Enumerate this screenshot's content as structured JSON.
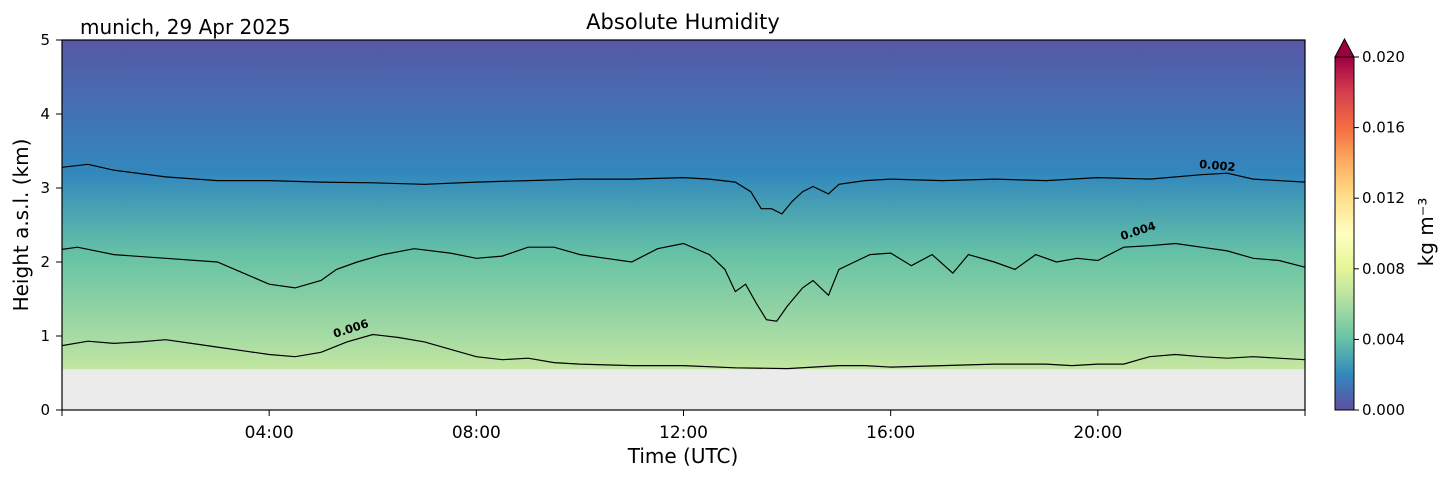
{
  "location_label": "munich, 29 Apr 2025",
  "chart_data": {
    "type": "heatmap",
    "title": "Absolute Humidity",
    "xlabel": "Time (UTC)",
    "ylabel": "Height a.s.l. (km)",
    "xlim_hours": [
      0,
      24
    ],
    "ylim_km": [
      0,
      5
    ],
    "x_ticks": [
      "04:00",
      "08:00",
      "12:00",
      "16:00",
      "20:00"
    ],
    "x_tick_hours": [
      4,
      8,
      12,
      16,
      20
    ],
    "y_ticks": [
      "0",
      "1",
      "2",
      "3",
      "4",
      "5"
    ],
    "data_bottom_km": 0.55,
    "no_data_color": "#ebebeb",
    "colorbar": {
      "label": "kg m⁻³",
      "min": 0.0,
      "max": 0.02,
      "extend": "max",
      "colormap": "Spectral_r",
      "ticks": [
        "0.000",
        "0.004",
        "0.008",
        "0.012",
        "0.016",
        "0.020"
      ],
      "tick_values": [
        0.0,
        0.004,
        0.008,
        0.012,
        0.016,
        0.02
      ],
      "stops": [
        {
          "v": 0.0,
          "color": "#5e4fa2"
        },
        {
          "v": 0.002,
          "color": "#3288bd"
        },
        {
          "v": 0.004,
          "color": "#66c2a5"
        },
        {
          "v": 0.006,
          "color": "#abdda4"
        },
        {
          "v": 0.008,
          "color": "#e6f598"
        },
        {
          "v": 0.01,
          "color": "#ffffbf"
        },
        {
          "v": 0.012,
          "color": "#fee08b"
        },
        {
          "v": 0.014,
          "color": "#fdae61"
        },
        {
          "v": 0.016,
          "color": "#f46d43"
        },
        {
          "v": 0.018,
          "color": "#d53e4f"
        },
        {
          "v": 0.02,
          "color": "#9e0142"
        }
      ]
    },
    "contours": [
      {
        "label": "0.002",
        "level": 0.002,
        "label_hour": 22.3,
        "label_km": 3.25,
        "points": [
          [
            0.0,
            3.28
          ],
          [
            0.5,
            3.32
          ],
          [
            1,
            3.24
          ],
          [
            2,
            3.15
          ],
          [
            3,
            3.1
          ],
          [
            4,
            3.1
          ],
          [
            5,
            3.08
          ],
          [
            6,
            3.07
          ],
          [
            7,
            3.05
          ],
          [
            8,
            3.08
          ],
          [
            9,
            3.1
          ],
          [
            10,
            3.12
          ],
          [
            11,
            3.12
          ],
          [
            12,
            3.14
          ],
          [
            12.5,
            3.12
          ],
          [
            13,
            3.08
          ],
          [
            13.3,
            2.95
          ],
          [
            13.5,
            2.72
          ],
          [
            13.7,
            2.72
          ],
          [
            13.9,
            2.65
          ],
          [
            14.1,
            2.82
          ],
          [
            14.3,
            2.95
          ],
          [
            14.5,
            3.02
          ],
          [
            14.8,
            2.92
          ],
          [
            15,
            3.05
          ],
          [
            15.5,
            3.1
          ],
          [
            16,
            3.12
          ],
          [
            17,
            3.1
          ],
          [
            18,
            3.12
          ],
          [
            19,
            3.1
          ],
          [
            20,
            3.14
          ],
          [
            21,
            3.12
          ],
          [
            22,
            3.18
          ],
          [
            22.5,
            3.2
          ],
          [
            23,
            3.12
          ],
          [
            24,
            3.08
          ]
        ]
      },
      {
        "label": "0.004",
        "level": 0.004,
        "label_hour": 20.8,
        "label_km": 2.37,
        "points": [
          [
            0.0,
            2.17
          ],
          [
            0.3,
            2.2
          ],
          [
            1,
            2.1
          ],
          [
            2,
            2.05
          ],
          [
            3,
            2.0
          ],
          [
            3.5,
            1.85
          ],
          [
            4,
            1.7
          ],
          [
            4.5,
            1.65
          ],
          [
            5,
            1.75
          ],
          [
            5.3,
            1.9
          ],
          [
            5.7,
            2.0
          ],
          [
            6.2,
            2.1
          ],
          [
            6.8,
            2.18
          ],
          [
            7.5,
            2.12
          ],
          [
            8,
            2.05
          ],
          [
            8.5,
            2.08
          ],
          [
            9,
            2.2
          ],
          [
            9.5,
            2.2
          ],
          [
            10,
            2.1
          ],
          [
            10.5,
            2.05
          ],
          [
            11,
            2.0
          ],
          [
            11.5,
            2.18
          ],
          [
            12,
            2.25
          ],
          [
            12.5,
            2.1
          ],
          [
            12.8,
            1.9
          ],
          [
            13,
            1.6
          ],
          [
            13.2,
            1.7
          ],
          [
            13.4,
            1.45
          ],
          [
            13.6,
            1.22
          ],
          [
            13.8,
            1.2
          ],
          [
            14,
            1.4
          ],
          [
            14.3,
            1.65
          ],
          [
            14.5,
            1.75
          ],
          [
            14.8,
            1.55
          ],
          [
            15,
            1.9
          ],
          [
            15.3,
            2.0
          ],
          [
            15.6,
            2.1
          ],
          [
            16,
            2.12
          ],
          [
            16.4,
            1.95
          ],
          [
            16.8,
            2.1
          ],
          [
            17.2,
            1.85
          ],
          [
            17.5,
            2.1
          ],
          [
            18,
            2.0
          ],
          [
            18.4,
            1.9
          ],
          [
            18.8,
            2.1
          ],
          [
            19.2,
            2.0
          ],
          [
            19.6,
            2.05
          ],
          [
            20,
            2.02
          ],
          [
            20.5,
            2.2
          ],
          [
            21,
            2.22
          ],
          [
            21.5,
            2.25
          ],
          [
            22,
            2.2
          ],
          [
            22.5,
            2.15
          ],
          [
            23,
            2.05
          ],
          [
            23.5,
            2.02
          ],
          [
            24,
            1.93
          ]
        ]
      },
      {
        "label": "0.006",
        "level": 0.006,
        "label_hour": 5.6,
        "label_km": 1.05,
        "points": [
          [
            0.0,
            0.87
          ],
          [
            0.5,
            0.93
          ],
          [
            1,
            0.9
          ],
          [
            1.5,
            0.92
          ],
          [
            2,
            0.95
          ],
          [
            2.5,
            0.9
          ],
          [
            3,
            0.85
          ],
          [
            3.5,
            0.8
          ],
          [
            4,
            0.75
          ],
          [
            4.5,
            0.72
          ],
          [
            5,
            0.78
          ],
          [
            5.5,
            0.92
          ],
          [
            6,
            1.02
          ],
          [
            6.5,
            0.98
          ],
          [
            7,
            0.92
          ],
          [
            7.5,
            0.82
          ],
          [
            8,
            0.72
          ],
          [
            8.5,
            0.68
          ],
          [
            9,
            0.7
          ],
          [
            9.5,
            0.64
          ],
          [
            10,
            0.62
          ],
          [
            11,
            0.6
          ],
          [
            12,
            0.6
          ],
          [
            13,
            0.57
          ],
          [
            14,
            0.56
          ],
          [
            14.5,
            0.58
          ],
          [
            15,
            0.6
          ],
          [
            15.5,
            0.6
          ],
          [
            16,
            0.58
          ],
          [
            17,
            0.6
          ],
          [
            18,
            0.62
          ],
          [
            19,
            0.62
          ],
          [
            19.5,
            0.6
          ],
          [
            20,
            0.62
          ],
          [
            20.5,
            0.62
          ],
          [
            21,
            0.72
          ],
          [
            21.5,
            0.75
          ],
          [
            22,
            0.72
          ],
          [
            22.5,
            0.7
          ],
          [
            23,
            0.72
          ],
          [
            24,
            0.68
          ]
        ]
      }
    ]
  }
}
